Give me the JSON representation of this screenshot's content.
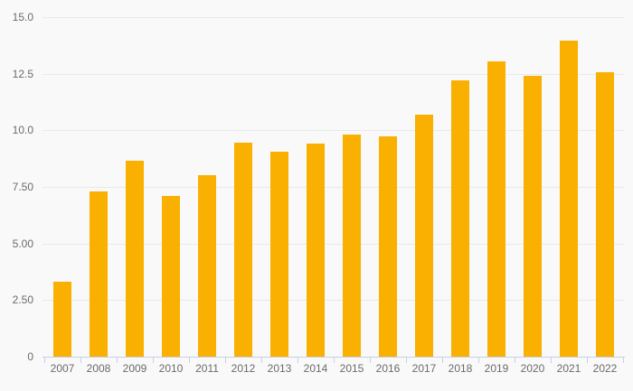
{
  "chart_data": {
    "type": "bar",
    "categories": [
      "2007",
      "2008",
      "2009",
      "2010",
      "2011",
      "2012",
      "2013",
      "2014",
      "2015",
      "2016",
      "2017",
      "2018",
      "2019",
      "2020",
      "2021",
      "2022"
    ],
    "values": [
      3.3,
      7.3,
      8.65,
      7.1,
      8.0,
      9.45,
      9.05,
      9.4,
      9.8,
      9.75,
      10.7,
      12.2,
      13.05,
      12.4,
      13.95,
      12.55
    ],
    "title": "",
    "xlabel": "",
    "ylabel": "",
    "ylim": [
      0,
      15
    ],
    "ytick_values": [
      0,
      2.5,
      5,
      7.5,
      10,
      12.5,
      15
    ],
    "ytick_labels": [
      "0",
      "2.50",
      "5.00",
      "7.50",
      "10.0",
      "12.5",
      "15.0"
    ],
    "grid": true,
    "legend": false
  },
  "colors": {
    "background": "#f9f9fa",
    "bar": "#f9b000",
    "gridline": "#e9e9e9",
    "axis": "#c8d0e6",
    "label_text": "#6b6b6b"
  }
}
